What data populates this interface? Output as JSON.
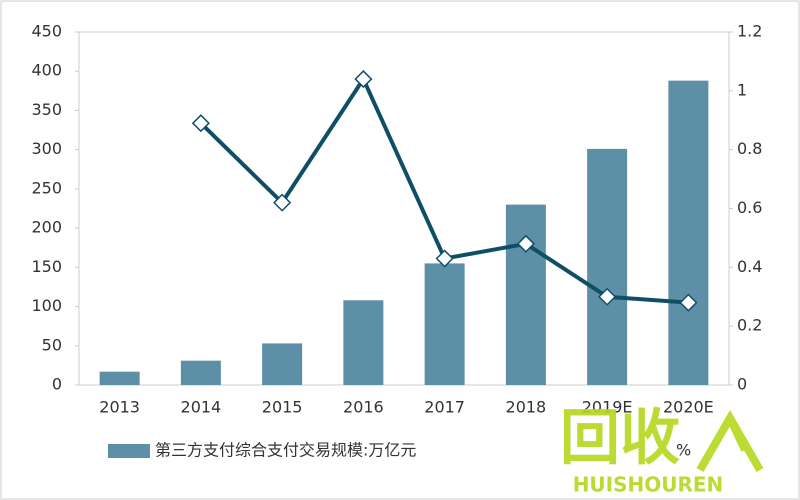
{
  "chart_data": {
    "type": "bar-line",
    "categories": [
      "2013",
      "2014",
      "2015",
      "2016",
      "2017",
      "2018",
      "2019E",
      "2020E"
    ],
    "series": [
      {
        "name": "第三方支付综合支付交易规模:万亿元",
        "type": "bar",
        "color": "#5d8fa7",
        "values": [
          17,
          31,
          53,
          108,
          155,
          230,
          301,
          388
        ]
      },
      {
        "type": "line",
        "axis": "y2",
        "color": "#0f4f66",
        "values": [
          null,
          0.89,
          0.62,
          1.04,
          0.43,
          0.48,
          0.3,
          0.28
        ]
      }
    ],
    "ylim": [
      0,
      450
    ],
    "yticks": [
      0,
      50,
      100,
      150,
      200,
      250,
      300,
      350,
      400,
      450
    ],
    "y2lim": [
      0,
      1.2
    ],
    "y2ticks": [
      0,
      0.2,
      0.4,
      0.6,
      0.8,
      1,
      1.2
    ],
    "legend_position": "bottom",
    "watermark": {
      "mark": "回收",
      "text": "HUISHOUREN",
      "suffix": "%"
    }
  }
}
